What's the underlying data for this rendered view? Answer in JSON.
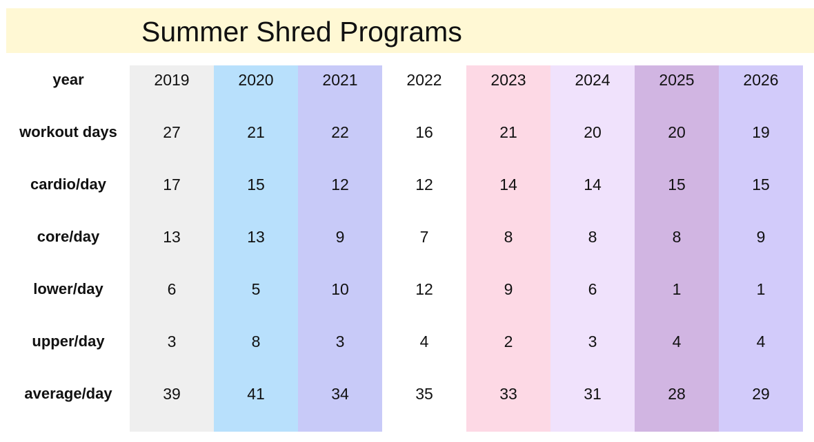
{
  "title": "Summer Shred Programs",
  "row_labels": [
    "year",
    "workout days",
    "cardio/day",
    "core/day",
    "lower/day",
    "upper/day",
    "average/day"
  ],
  "colors": [
    "#efefef",
    "#b8e0fc",
    "#c8caf8",
    "#ffffff",
    "#fdd9e5",
    "#f0e2fc",
    "#d1b5e2",
    "#d2cbfa"
  ],
  "chart_data": {
    "type": "table",
    "title": "Summer Shred Programs",
    "columns": [
      {
        "year": "2019",
        "values": [
          "27",
          "17",
          "13",
          "6",
          "3",
          "39"
        ]
      },
      {
        "year": "2020",
        "values": [
          "21",
          "15",
          "13",
          "5",
          "8",
          "41"
        ]
      },
      {
        "year": "2021",
        "values": [
          "22",
          "12",
          "9",
          "10",
          "3",
          "34"
        ]
      },
      {
        "year": "2022",
        "values": [
          "16",
          "12",
          "7",
          "12",
          "4",
          "35"
        ]
      },
      {
        "year": "2023",
        "values": [
          "21",
          "14",
          "8",
          "9",
          "2",
          "33"
        ]
      },
      {
        "year": "2024",
        "values": [
          "20",
          "14",
          "8",
          "6",
          "3",
          "31"
        ]
      },
      {
        "year": "2025",
        "values": [
          "20",
          "15",
          "8",
          "1",
          "4",
          "28"
        ]
      },
      {
        "year": "2026",
        "values": [
          "19",
          "15",
          "9",
          "1",
          "4",
          "29"
        ]
      }
    ]
  }
}
